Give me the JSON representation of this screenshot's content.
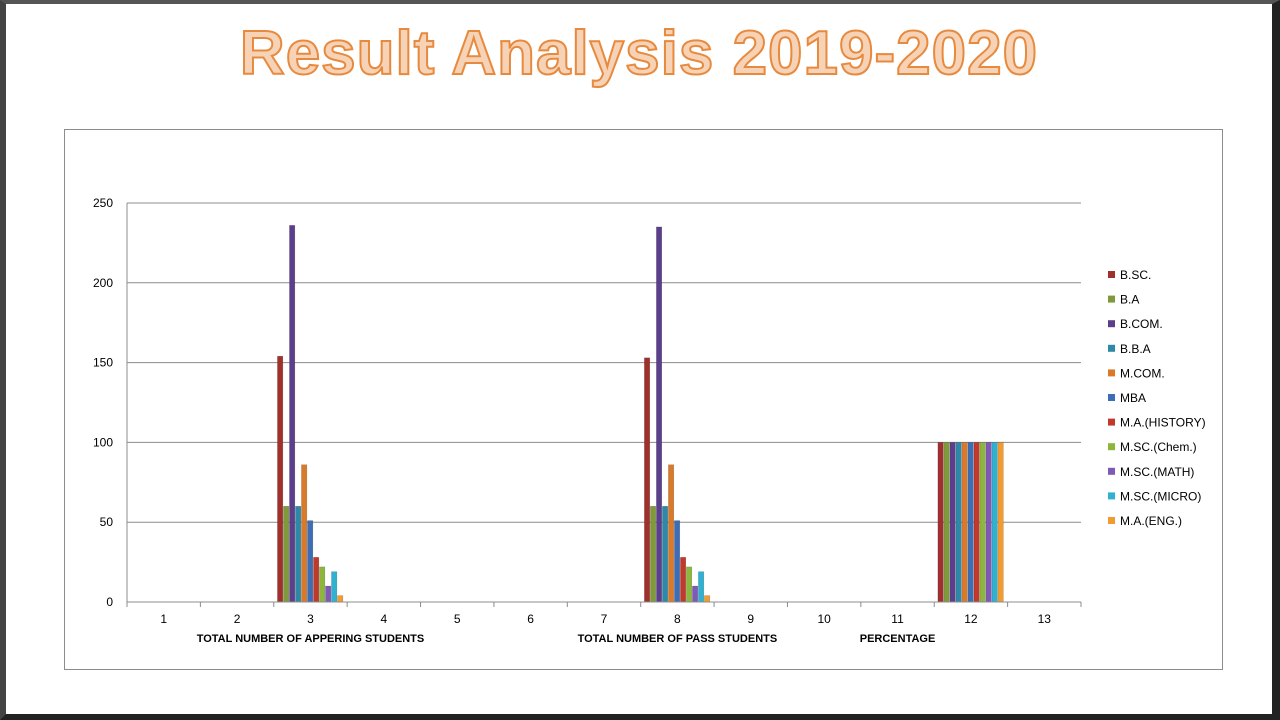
{
  "slide": {
    "title": "Result Analysis 2019-2020"
  },
  "chart_data": {
    "type": "bar",
    "categories": [
      "1",
      "2",
      "3",
      "4",
      "5",
      "6",
      "7",
      "8",
      "9",
      "10",
      "11",
      "12",
      "13"
    ],
    "group_labels": [
      {
        "label": "TOTAL NUMBER OF APPERING STUDENTS",
        "category": "3"
      },
      {
        "label": "TOTAL NUMBER OF PASS STUDENTS",
        "category": "8"
      },
      {
        "label": "PERCENTAGE",
        "category": "11"
      }
    ],
    "ylim": [
      0,
      250
    ],
    "yticks": [
      0,
      50,
      100,
      150,
      200,
      250
    ],
    "grid": true,
    "legend_position": "right",
    "series": [
      {
        "name": "B.SC.",
        "color": "#a0302c",
        "values": [
          null,
          null,
          154,
          null,
          null,
          null,
          null,
          153,
          null,
          null,
          null,
          100,
          null
        ]
      },
      {
        "name": "B.A",
        "color": "#7f9a3a",
        "values": [
          null,
          null,
          60,
          null,
          null,
          null,
          null,
          60,
          null,
          null,
          null,
          100,
          null
        ]
      },
      {
        "name": "B.COM.",
        "color": "#5b3f8c",
        "values": [
          null,
          null,
          236,
          null,
          null,
          null,
          null,
          235,
          null,
          null,
          null,
          100,
          null
        ]
      },
      {
        "name": "B.B.A",
        "color": "#2e88a8",
        "values": [
          null,
          null,
          60,
          null,
          null,
          null,
          null,
          60,
          null,
          null,
          null,
          100,
          null
        ]
      },
      {
        "name": "M.COM.",
        "color": "#d97a2b",
        "values": [
          null,
          null,
          86,
          null,
          null,
          null,
          null,
          86,
          null,
          null,
          null,
          100,
          null
        ]
      },
      {
        "name": "MBA",
        "color": "#3d6db5",
        "values": [
          null,
          null,
          51,
          null,
          null,
          null,
          null,
          51,
          null,
          null,
          null,
          100,
          null
        ]
      },
      {
        "name": "M.A.(HISTORY)",
        "color": "#c0392b",
        "values": [
          null,
          null,
          28,
          null,
          null,
          null,
          null,
          28,
          null,
          null,
          null,
          100,
          null
        ]
      },
      {
        "name": "M.SC.(Chem.)",
        "color": "#8cb63c",
        "values": [
          null,
          null,
          22,
          null,
          null,
          null,
          null,
          22,
          null,
          null,
          null,
          100,
          null
        ]
      },
      {
        "name": "M.SC.(MATH)",
        "color": "#7d5ab5",
        "values": [
          null,
          null,
          10,
          null,
          null,
          null,
          null,
          10,
          null,
          null,
          null,
          100,
          null
        ]
      },
      {
        "name": "M.SC.(MICRO)",
        "color": "#2fb1cf",
        "values": [
          null,
          null,
          19,
          null,
          null,
          null,
          null,
          19,
          null,
          null,
          null,
          100,
          null
        ]
      },
      {
        "name": "M.A.(ENG.)",
        "color": "#f29b30",
        "values": [
          null,
          null,
          4,
          null,
          null,
          null,
          null,
          4,
          null,
          null,
          null,
          100,
          null
        ]
      }
    ]
  }
}
